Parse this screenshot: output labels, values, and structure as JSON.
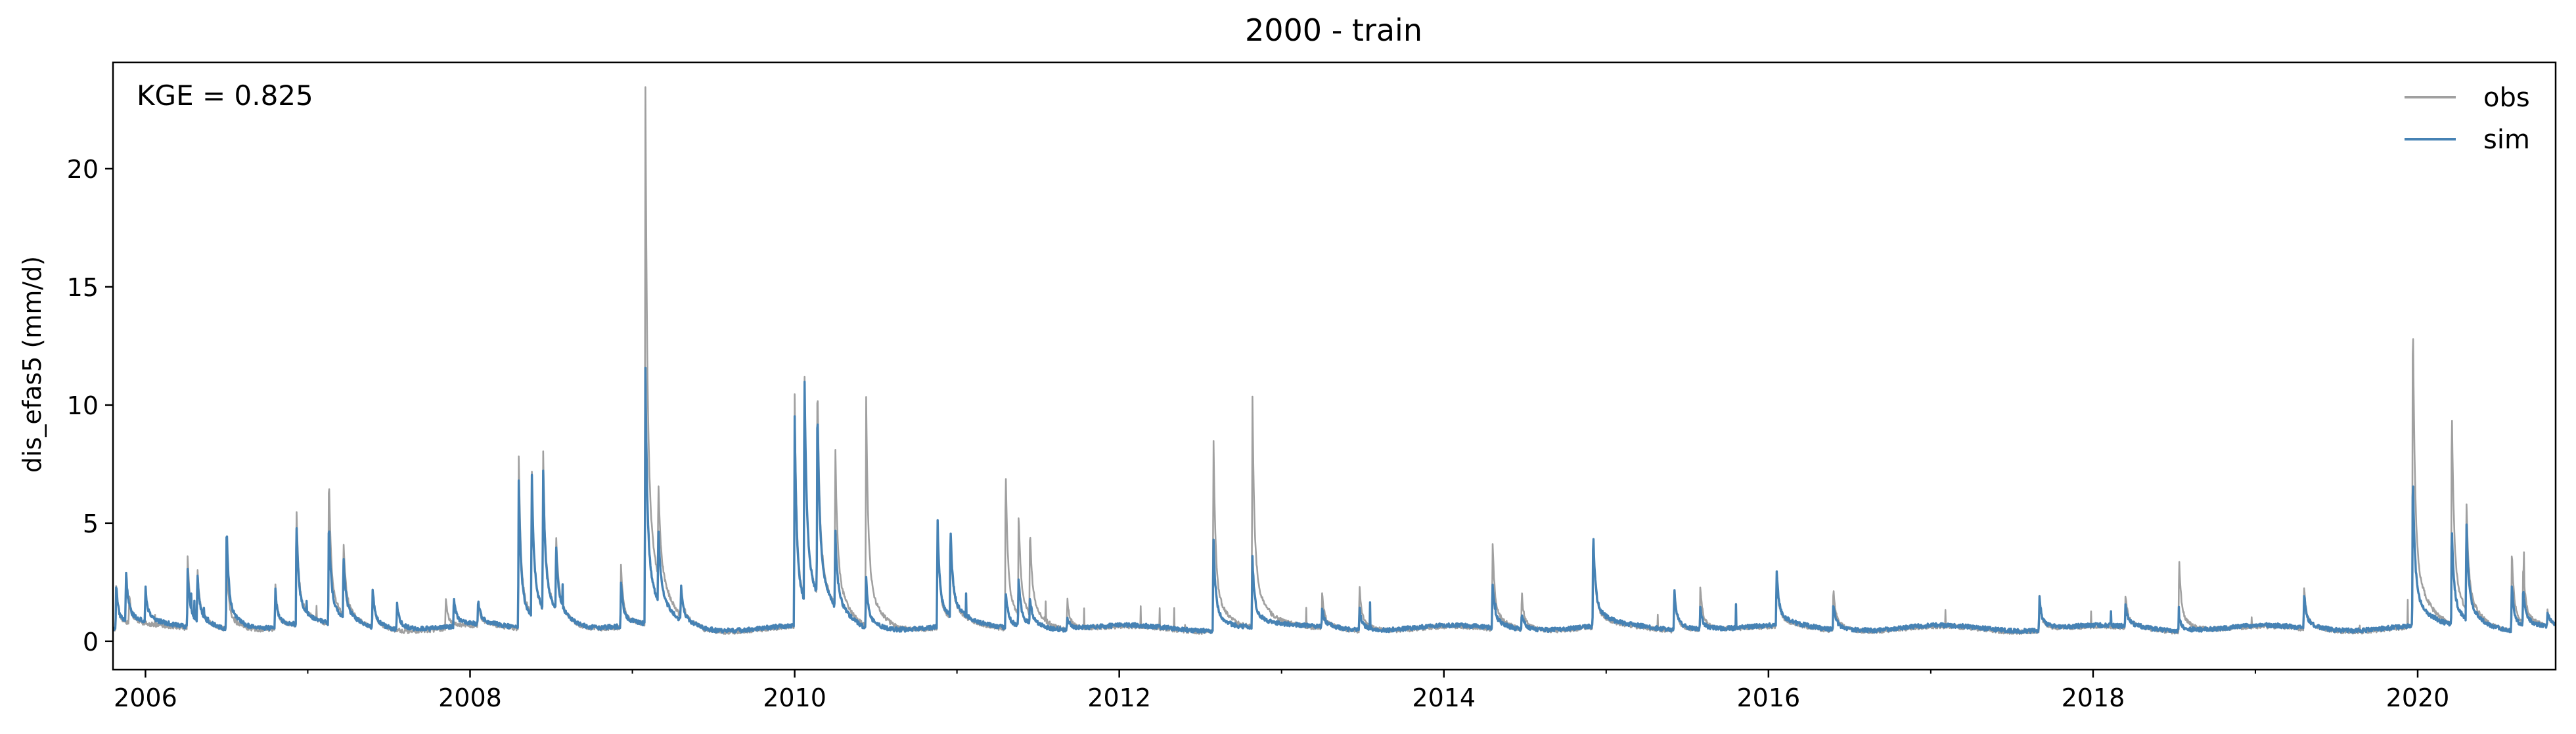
{
  "chart_data": {
    "type": "line",
    "title": "2000 - train",
    "xlabel": "",
    "ylabel": "dis_efas5 (mm/d)",
    "annotation": "KGE = 0.825",
    "x_range": [
      2005.8,
      2020.85
    ],
    "ylim": [
      -1.2,
      24.5
    ],
    "x_ticks": [
      2006,
      2008,
      2010,
      2012,
      2014,
      2016,
      2018,
      2020
    ],
    "x_tick_labels": [
      "2006",
      "2008",
      "2010",
      "2012",
      "2014",
      "2016",
      "2018",
      "2020"
    ],
    "y_ticks": [
      0,
      5,
      10,
      15,
      20
    ],
    "y_tick_labels": [
      "0",
      "5",
      "10",
      "15",
      "20"
    ],
    "grid": false,
    "legend_position": "top-right",
    "series": [
      {
        "name": "obs",
        "color": "#a0a0a0",
        "baseline": 0.3,
        "events": [
          [
            2005.82,
            2.3
          ],
          [
            2005.9,
            1.5
          ],
          [
            2006.26,
            3.4
          ],
          [
            2006.32,
            2.6
          ],
          [
            2006.5,
            3.3
          ],
          [
            2006.8,
            2.2
          ],
          [
            2006.93,
            5.6
          ],
          [
            2007.13,
            6.8
          ],
          [
            2007.22,
            3.6
          ],
          [
            2007.4,
            2.0
          ],
          [
            2007.85,
            1.6
          ],
          [
            2008.05,
            1.4
          ],
          [
            2008.3,
            7.7
          ],
          [
            2008.38,
            6.6
          ],
          [
            2008.45,
            7.1
          ],
          [
            2008.53,
            3.6
          ],
          [
            2008.93,
            3.0
          ],
          [
            2009.08,
            23.6
          ],
          [
            2009.16,
            4.4
          ],
          [
            2009.3,
            1.6
          ],
          [
            2010.0,
            10.1
          ],
          [
            2010.06,
            10.5
          ],
          [
            2010.14,
            9.8
          ],
          [
            2010.25,
            7.4
          ],
          [
            2010.44,
            10.3
          ],
          [
            2010.88,
            4.8
          ],
          [
            2010.96,
            4.0
          ],
          [
            2011.3,
            7.4
          ],
          [
            2011.38,
            4.7
          ],
          [
            2011.45,
            4.0
          ],
          [
            2011.68,
            1.6
          ],
          [
            2012.58,
            8.8
          ],
          [
            2012.82,
            10.3
          ],
          [
            2013.25,
            1.8
          ],
          [
            2013.48,
            2.3
          ],
          [
            2014.3,
            4.1
          ],
          [
            2014.48,
            1.8
          ],
          [
            2014.92,
            4.3
          ],
          [
            2015.42,
            2.2
          ],
          [
            2015.58,
            2.3
          ],
          [
            2016.05,
            2.6
          ],
          [
            2016.4,
            2.2
          ],
          [
            2017.67,
            1.8
          ],
          [
            2018.2,
            1.7
          ],
          [
            2018.53,
            3.5
          ],
          [
            2019.3,
            2.1
          ],
          [
            2019.97,
            14.2
          ],
          [
            2020.21,
            10.0
          ],
          [
            2020.3,
            5.1
          ],
          [
            2020.58,
            3.8
          ],
          [
            2020.65,
            2.9
          ],
          [
            2020.8,
            1.0
          ]
        ]
      },
      {
        "name": "sim",
        "color": "#4682b4",
        "baseline": 0.35,
        "events": [
          [
            2005.82,
            2.2
          ],
          [
            2005.88,
            2.6
          ],
          [
            2006.0,
            1.8
          ],
          [
            2006.26,
            2.8
          ],
          [
            2006.32,
            2.4
          ],
          [
            2006.5,
            4.8
          ],
          [
            2006.8,
            2.0
          ],
          [
            2006.93,
            4.9
          ],
          [
            2007.13,
            4.9
          ],
          [
            2007.22,
            3.0
          ],
          [
            2007.4,
            2.0
          ],
          [
            2007.55,
            1.5
          ],
          [
            2007.9,
            1.7
          ],
          [
            2008.05,
            1.4
          ],
          [
            2008.3,
            6.6
          ],
          [
            2008.38,
            6.6
          ],
          [
            2008.45,
            6.4
          ],
          [
            2008.53,
            3.2
          ],
          [
            2008.93,
            2.3
          ],
          [
            2009.08,
            11.5
          ],
          [
            2009.16,
            3.6
          ],
          [
            2009.3,
            1.8
          ],
          [
            2010.0,
            9.2
          ],
          [
            2010.06,
            10.5
          ],
          [
            2010.14,
            8.6
          ],
          [
            2010.25,
            3.7
          ],
          [
            2010.44,
            2.5
          ],
          [
            2010.88,
            5.0
          ],
          [
            2010.96,
            4.2
          ],
          [
            2011.3,
            2.0
          ],
          [
            2011.38,
            2.4
          ],
          [
            2011.45,
            1.5
          ],
          [
            2011.68,
            0.9
          ],
          [
            2012.58,
            4.4
          ],
          [
            2012.82,
            3.4
          ],
          [
            2013.25,
            1.2
          ],
          [
            2013.48,
            1.3
          ],
          [
            2014.3,
            2.3
          ],
          [
            2014.48,
            1.1
          ],
          [
            2014.92,
            4.5
          ],
          [
            2015.42,
            2.1
          ],
          [
            2015.58,
            1.3
          ],
          [
            2016.05,
            2.8
          ],
          [
            2016.4,
            1.5
          ],
          [
            2017.67,
            1.8
          ],
          [
            2018.2,
            1.3
          ],
          [
            2018.53,
            1.0
          ],
          [
            2019.3,
            1.8
          ],
          [
            2019.97,
            7.0
          ],
          [
            2020.21,
            4.7
          ],
          [
            2020.3,
            4.6
          ],
          [
            2020.58,
            2.4
          ],
          [
            2020.65,
            2.0
          ],
          [
            2020.8,
            1.0
          ]
        ]
      }
    ]
  }
}
